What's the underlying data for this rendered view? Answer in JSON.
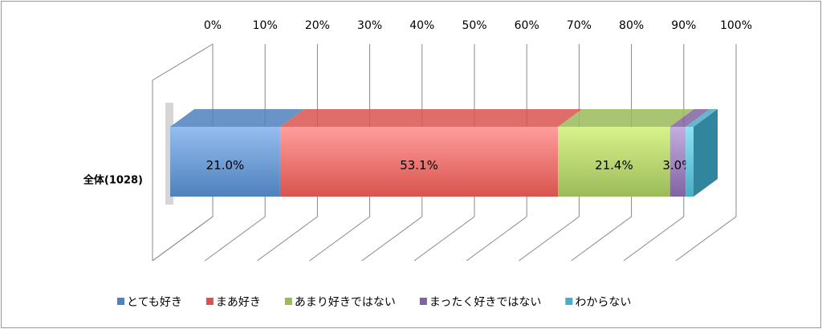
{
  "chart_data": {
    "type": "stacked-bar-3d",
    "orientation": "horizontal",
    "categories": [
      "全体(1028)"
    ],
    "xlim": [
      0,
      100
    ],
    "xticks": [
      {
        "value": 0,
        "label": "0%"
      },
      {
        "value": 10,
        "label": "10%"
      },
      {
        "value": 20,
        "label": "20%"
      },
      {
        "value": 30,
        "label": "30%"
      },
      {
        "value": 40,
        "label": "40%"
      },
      {
        "value": 50,
        "label": "50%"
      },
      {
        "value": 60,
        "label": "60%"
      },
      {
        "value": 70,
        "label": "70%"
      },
      {
        "value": 80,
        "label": "80%"
      },
      {
        "value": 90,
        "label": "90%"
      },
      {
        "value": 100,
        "label": "100%"
      }
    ],
    "legend": "bottom",
    "series": [
      {
        "name": "とても好き",
        "color": "#4f81bd",
        "light": "#95bdf0",
        "values": [
          21.0
        ],
        "value_labels": [
          "21.0%"
        ]
      },
      {
        "name": "まあ好き",
        "color": "#d9534f",
        "light": "#ff9e9c",
        "values": [
          53.1
        ],
        "value_labels": [
          "53.1%"
        ]
      },
      {
        "name": "あまり好きではない",
        "color": "#9bbb59",
        "light": "#d9f28c",
        "values": [
          21.4
        ],
        "value_labels": [
          "21.4%"
        ]
      },
      {
        "name": "まったく好きではない",
        "color": "#8064a2",
        "light": "#c3aee0",
        "values": [
          3.0
        ],
        "value_labels": [
          "3.0%"
        ]
      },
      {
        "name": "わからない",
        "color": "#4bacc6",
        "light": "#8ee3f5",
        "values": [
          1.5
        ]
      }
    ]
  }
}
